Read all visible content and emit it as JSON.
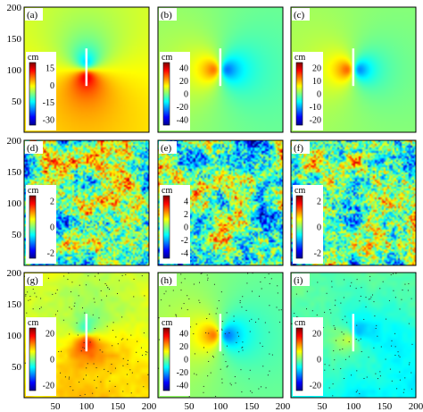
{
  "figure": {
    "panels": [
      {
        "label": "(a)",
        "field": "dipole_a",
        "colorbar": {
          "unit": "cm",
          "ticks": [
            "15",
            "0",
            "-15",
            "-30"
          ]
        }
      },
      {
        "label": "(b)",
        "field": "dipole_b",
        "colorbar": {
          "unit": "cm",
          "ticks": [
            "40",
            "20",
            "0",
            "-20",
            "-40"
          ]
        }
      },
      {
        "label": "(c)",
        "field": "dipole_c",
        "colorbar": {
          "unit": "cm",
          "ticks": [
            "20",
            "10",
            "0",
            "-10",
            "-20"
          ]
        }
      },
      {
        "label": "(d)",
        "field": "noise",
        "colorbar": {
          "unit": "cm",
          "ticks": [
            "2",
            "0",
            "-2"
          ]
        }
      },
      {
        "label": "(e)",
        "field": "noise",
        "colorbar": {
          "unit": "cm",
          "ticks": [
            "4",
            "2",
            "0",
            "-2",
            "-4"
          ]
        }
      },
      {
        "label": "(f)",
        "field": "noise",
        "colorbar": {
          "unit": "cm",
          "ticks": [
            "2",
            "0",
            "-2"
          ]
        }
      },
      {
        "label": "(g)",
        "field": "dipole_g",
        "colorbar": {
          "unit": "cm",
          "ticks": [
            "20",
            "0",
            "-20"
          ]
        }
      },
      {
        "label": "(h)",
        "field": "dipole_h",
        "colorbar": {
          "unit": "cm",
          "ticks": [
            "40",
            "20",
            "0",
            "-20",
            "-40"
          ]
        }
      },
      {
        "label": "(i)",
        "field": "dipole_i",
        "colorbar": {
          "unit": "cm",
          "ticks": [
            "20",
            "0",
            "-20"
          ]
        }
      }
    ],
    "y_ticks": [
      "200",
      "150",
      "100",
      "50"
    ],
    "x_ticks": [
      "50",
      "100",
      "150",
      "200"
    ]
  }
}
